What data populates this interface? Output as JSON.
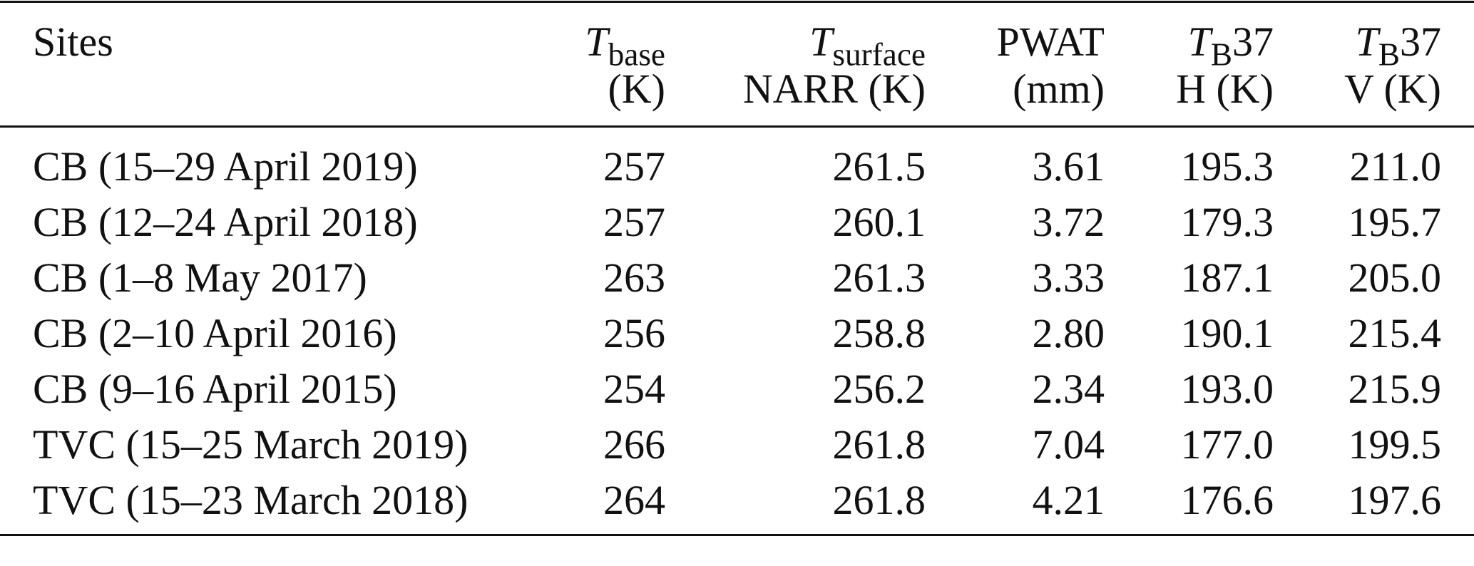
{
  "table": {
    "headers": [
      {
        "line1": "Sites"
      },
      {
        "symbol": "T",
        "subscript": "base",
        "line2": "(K)"
      },
      {
        "symbol": "T",
        "subscript": "surface",
        "line2": "NARR (K)"
      },
      {
        "line1": "PWAT",
        "line2": "(mm)"
      },
      {
        "symbol": "T",
        "subscript": "B",
        "suffix": "37",
        "line2": "H (K)"
      },
      {
        "symbol": "T",
        "subscript": "B",
        "suffix": "37",
        "line2": "V (K)"
      }
    ],
    "rows": [
      [
        "CB (15–29 April 2019)",
        "257",
        "261.5",
        "3.61",
        "195.3",
        "211.0"
      ],
      [
        "CB (12–24 April 2018)",
        "257",
        "260.1",
        "3.72",
        "179.3",
        "195.7"
      ],
      [
        "CB (1–8 May 2017)",
        "263",
        "261.3",
        "3.33",
        "187.1",
        "205.0"
      ],
      [
        "CB (2–10 April 2016)",
        "256",
        "258.8",
        "2.80",
        "190.1",
        "215.4"
      ],
      [
        "CB (9–16 April 2015)",
        "254",
        "256.2",
        "2.34",
        "193.0",
        "215.9"
      ],
      [
        "TVC (15–25 March 2019)",
        "266",
        "261.8",
        "7.04",
        "177.0",
        "199.5"
      ],
      [
        "TVC (15–23 March 2018)",
        "264",
        "261.8",
        "4.21",
        "176.6",
        "197.6"
      ]
    ]
  }
}
